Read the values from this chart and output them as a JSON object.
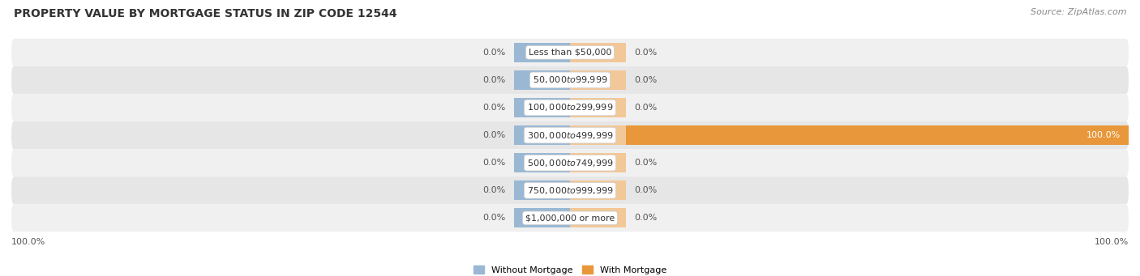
{
  "title": "PROPERTY VALUE BY MORTGAGE STATUS IN ZIP CODE 12544",
  "source": "Source: ZipAtlas.com",
  "categories": [
    "Less than $50,000",
    "$50,000 to $99,999",
    "$100,000 to $299,999",
    "$300,000 to $499,999",
    "$500,000 to $749,999",
    "$750,000 to $999,999",
    "$1,000,000 or more"
  ],
  "without_mortgage": [
    0.0,
    0.0,
    0.0,
    0.0,
    0.0,
    0.0,
    0.0
  ],
  "with_mortgage": [
    0.0,
    0.0,
    0.0,
    100.0,
    0.0,
    0.0,
    0.0
  ],
  "color_without": "#9ab8d4",
  "color_with_full": "#e8983a",
  "color_with_stub": "#f2c898",
  "row_bg_even": "#f0f0f0",
  "row_bg_odd": "#e6e6e6",
  "center_label_bg": "#ffffff",
  "center_label_edge": "#cccccc",
  "title_color": "#333333",
  "source_color": "#888888",
  "value_color": "#555555",
  "value_color_white": "#ffffff",
  "legend_without": "Without Mortgage",
  "legend_with": "With Mortgage",
  "title_fontsize": 10,
  "source_fontsize": 8,
  "label_fontsize": 8,
  "tick_fontsize": 8,
  "bottom_tick_left": "100.0%",
  "bottom_tick_right": "100.0%"
}
